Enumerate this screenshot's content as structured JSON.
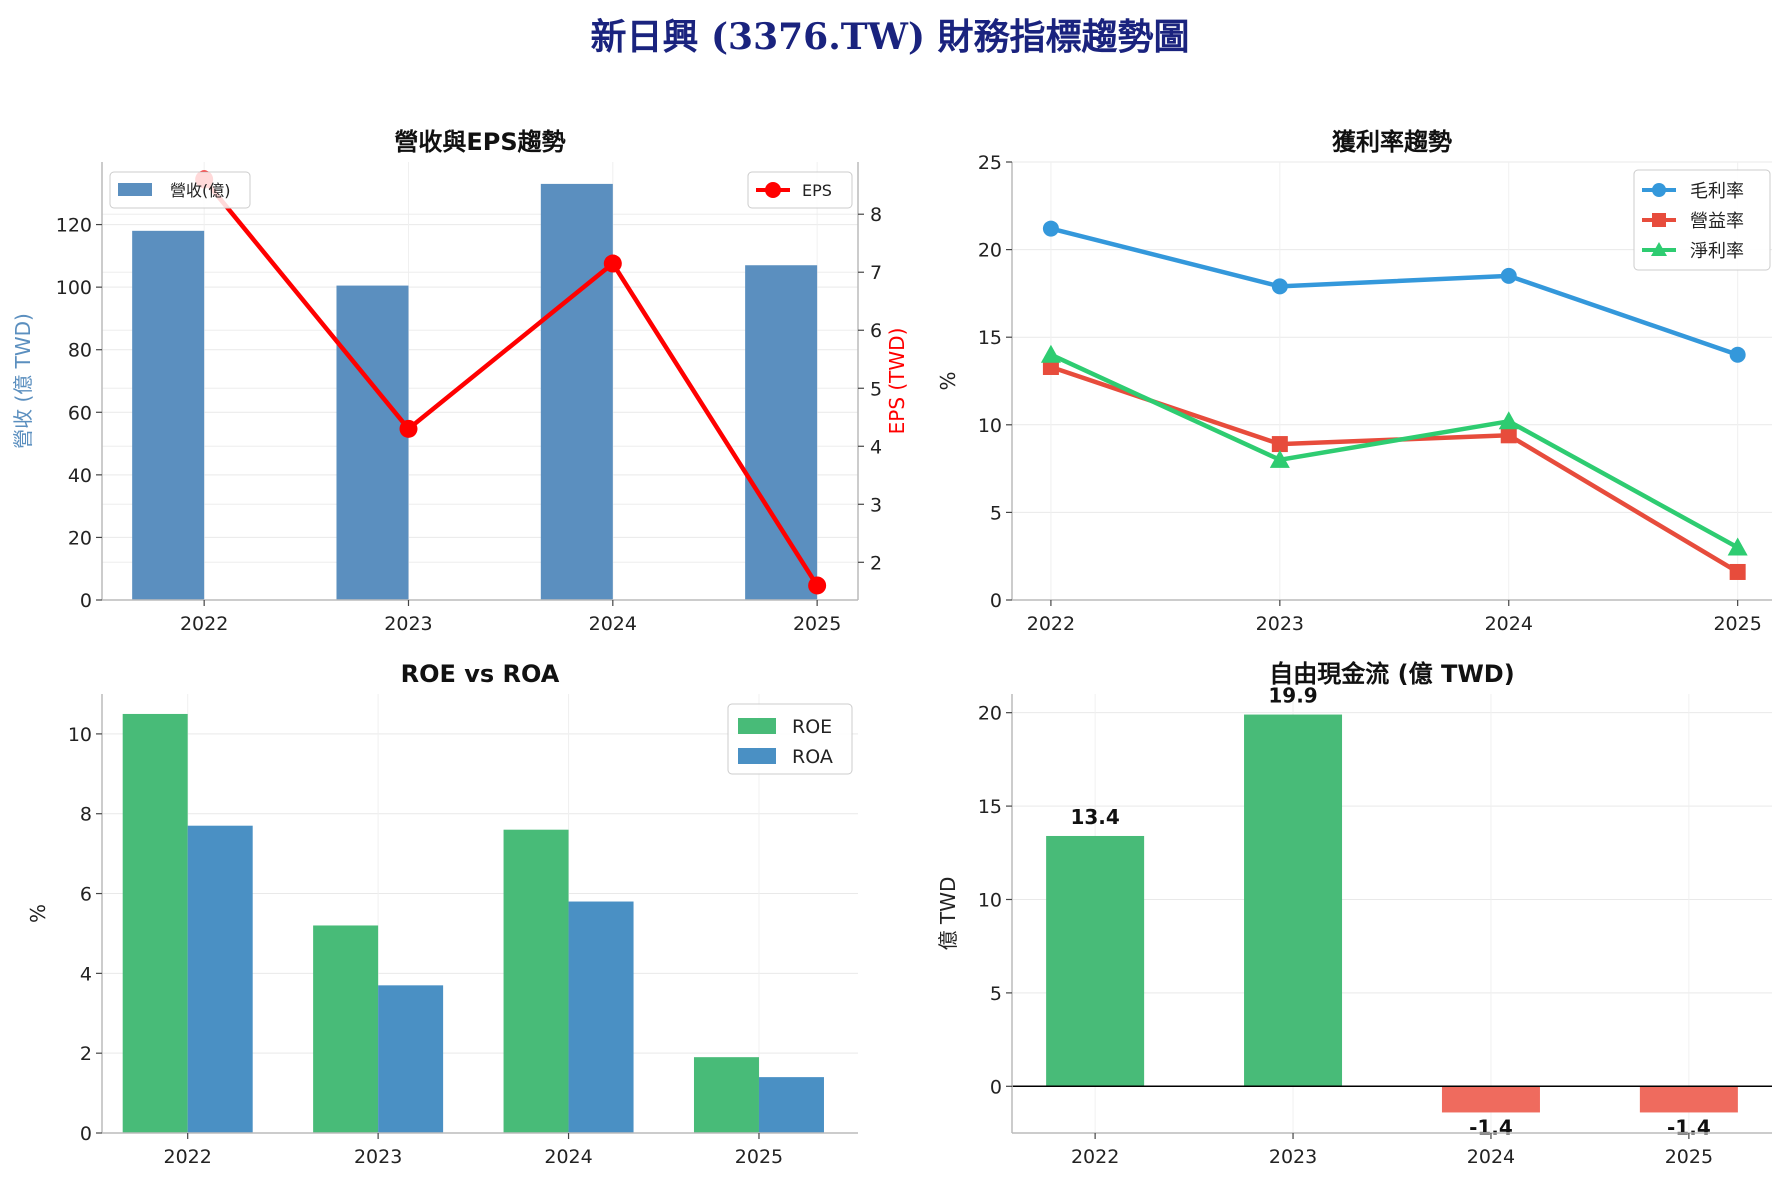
{
  "title": "新日興 (3376.TW) 財務指標趨勢圖",
  "colors": {
    "title": "#1a237e",
    "revenue": "#5b8fbf",
    "eps": "#ff0000",
    "gross": "#3498db",
    "operating": "#e74c3c",
    "net": "#2ecc71",
    "roe": "#48bb78",
    "roa": "#4a90c4",
    "fcf_pos": "#48bb78",
    "fcf_neg": "#ef6b5e"
  },
  "chart_data": [
    {
      "id": "revenue-eps",
      "type": "bar+line",
      "title": "營收與EPS趨勢",
      "categories": [
        "2022",
        "2023",
        "2024",
        "2025"
      ],
      "ylabel": "營收 (億 TWD)",
      "y2label": "EPS (TWD)",
      "ylim": [
        0,
        140
      ],
      "yticks": [
        0,
        20,
        40,
        60,
        80,
        100,
        120
      ],
      "y2lim": [
        1.35,
        8.9
      ],
      "y2ticks": [
        2,
        3,
        4,
        5,
        6,
        7,
        8
      ],
      "series": [
        {
          "name": "營收(億)",
          "kind": "bar",
          "axis": "left",
          "values": [
            118,
            100.5,
            133,
            107
          ]
        },
        {
          "name": "EPS",
          "kind": "line",
          "axis": "right",
          "values": [
            8.6,
            4.3,
            7.15,
            1.6
          ]
        }
      ],
      "legend": [
        "top-left",
        "top-right"
      ],
      "grid": true
    },
    {
      "id": "margins",
      "type": "line",
      "title": "獲利率趨勢",
      "categories": [
        "2022",
        "2023",
        "2024",
        "2025"
      ],
      "ylabel": "%",
      "ylim": [
        0,
        25
      ],
      "yticks": [
        0,
        5,
        10,
        15,
        20,
        25
      ],
      "series": [
        {
          "name": "毛利率",
          "marker": "circle",
          "values": [
            21.2,
            17.9,
            18.5,
            14.0
          ]
        },
        {
          "name": "營益率",
          "marker": "square",
          "values": [
            13.3,
            8.9,
            9.4,
            1.6
          ]
        },
        {
          "name": "淨利率",
          "marker": "triangle",
          "values": [
            14.0,
            8.0,
            10.2,
            3.0
          ]
        }
      ],
      "legend": "top-right",
      "grid": true
    },
    {
      "id": "roe-roa",
      "type": "bar",
      "title": "ROE vs ROA",
      "categories": [
        "2022",
        "2023",
        "2024",
        "2025"
      ],
      "ylabel": "%",
      "ylim": [
        0,
        11
      ],
      "yticks": [
        0,
        2,
        4,
        6,
        8,
        10
      ],
      "series": [
        {
          "name": "ROE",
          "values": [
            10.5,
            5.2,
            7.6,
            1.9
          ]
        },
        {
          "name": "ROA",
          "values": [
            7.7,
            3.7,
            5.8,
            1.4
          ]
        }
      ],
      "legend": "top-right",
      "grid": true
    },
    {
      "id": "fcf",
      "type": "bar",
      "title": "自由現金流 (億 TWD)",
      "categories": [
        "2022",
        "2023",
        "2024",
        "2025"
      ],
      "ylabel": "億 TWD",
      "ylim": [
        -2.5,
        21
      ],
      "yticks": [
        0,
        5,
        10,
        15,
        20
      ],
      "values": [
        13.4,
        19.9,
        -1.4,
        -1.4
      ],
      "value_labels": [
        "13.4",
        "19.9",
        "-1.4",
        "-1.4"
      ],
      "grid": true
    }
  ]
}
